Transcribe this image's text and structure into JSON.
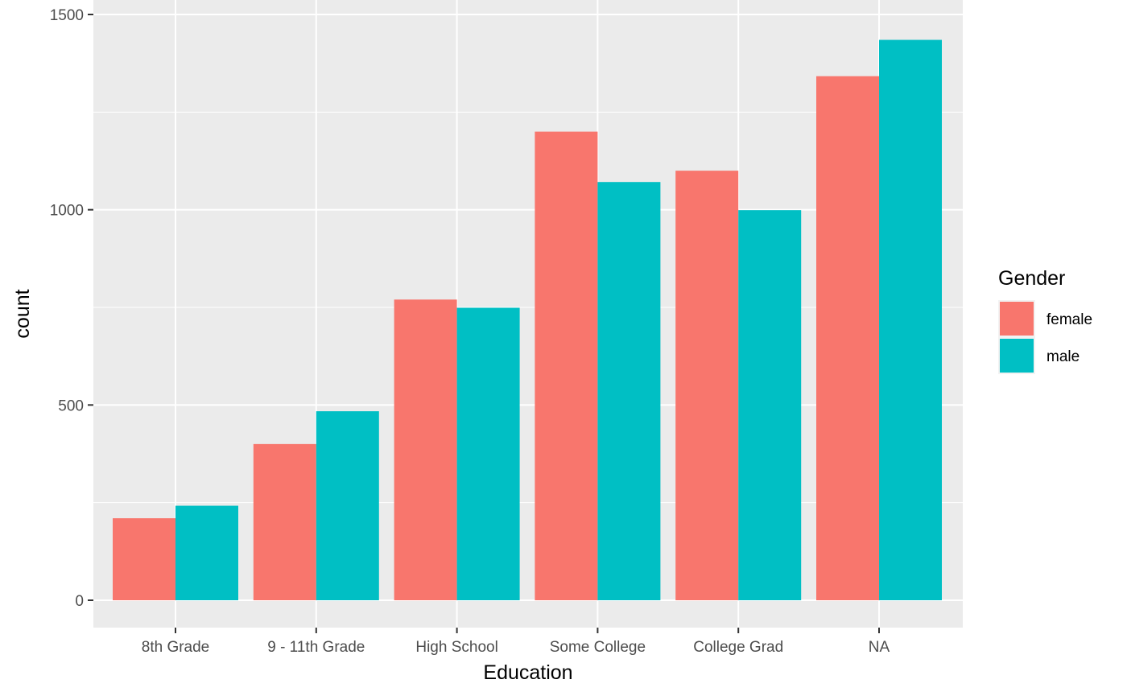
{
  "chart_data": {
    "type": "bar",
    "categories": [
      "8th Grade",
      "9 - 11th Grade",
      "High School",
      "Some College",
      "College Grad",
      "NA"
    ],
    "series": [
      {
        "name": "female",
        "color": "#F8766D",
        "values": [
          210,
          400,
          770,
          1200,
          1100,
          1342
        ]
      },
      {
        "name": "male",
        "color": "#00BFC4",
        "values": [
          242,
          484,
          749,
          1071,
          999,
          1435
        ]
      }
    ],
    "title": "",
    "xlabel": "Education",
    "ylabel": "count",
    "ylim": [
      0,
      1500
    ],
    "yticks": [
      "0",
      "500",
      "1000",
      "1500"
    ],
    "grid": true,
    "legend": {
      "title": "Gender",
      "placement": "right"
    },
    "panel_background": "#EBEBEB"
  }
}
